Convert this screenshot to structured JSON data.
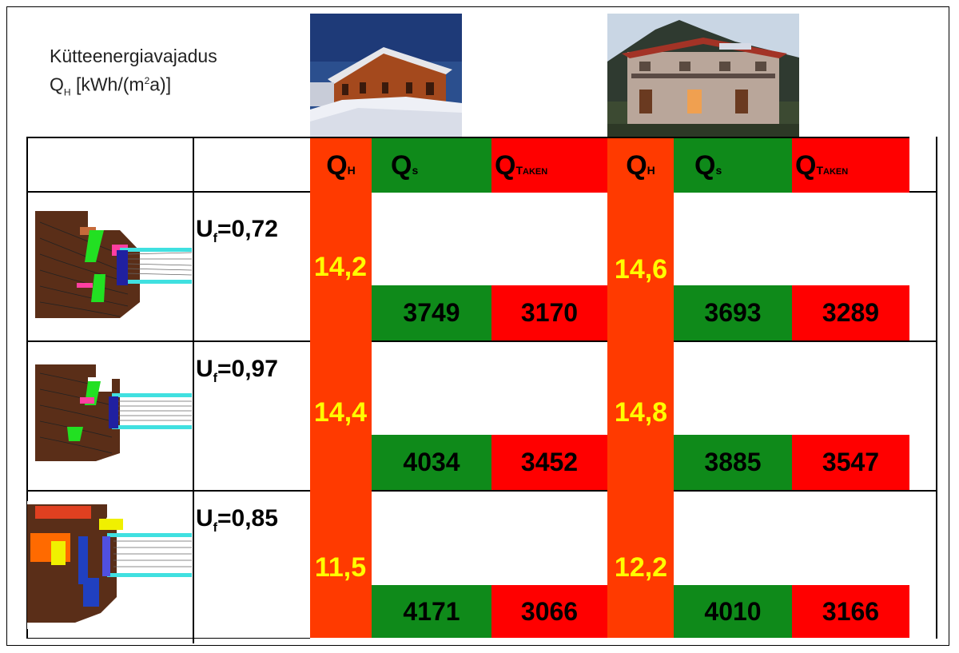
{
  "title": {
    "line1": "Kütteenergiavajadus",
    "q": "Q",
    "q_sub": "H",
    "unit_pre": " [kWh/(m",
    "unit_sup": "2",
    "unit_post": "a)]"
  },
  "headers": {
    "q": "Q",
    "sub_h": "H",
    "sub_s": "s",
    "sub_t": "T",
    "sub_aken": "AKEN"
  },
  "rows": [
    {
      "uf": "0,72",
      "house1": {
        "qh": "14,2",
        "qs": "3749",
        "qt": "3170"
      },
      "house2": {
        "qh": "14,6",
        "qs": "3693",
        "qt": "3289"
      }
    },
    {
      "uf": "0,97",
      "house1": {
        "qh": "14,4",
        "qs": "4034",
        "qt": "3452"
      },
      "house2": {
        "qh": "14,8",
        "qs": "3885",
        "qt": "3547"
      }
    },
    {
      "uf": "0,85",
      "house1": {
        "qh": "11,5",
        "qs": "4171",
        "qt": "3066"
      },
      "house2": {
        "qh": "12,2",
        "qs": "4010",
        "qt": "3166"
      }
    }
  ],
  "uf_prefix": {
    "u": "U",
    "f": "f",
    "eq": "="
  },
  "colors": {
    "red": "#ff0000",
    "orange": "#ff3a00",
    "green": "#0f8a1a",
    "yellow": "#ffff00"
  }
}
